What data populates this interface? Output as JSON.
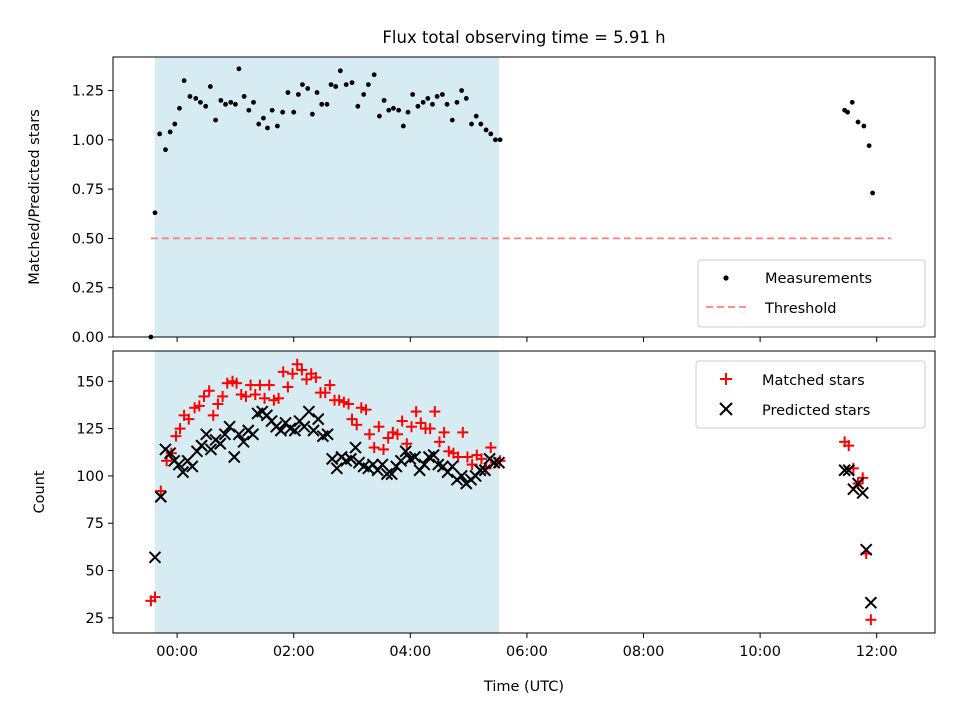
{
  "title": "Flux total observing time = 5.91 h",
  "colors": {
    "shade": "#add8e6",
    "threshold": "#ff7f7f",
    "matched": "#ff0000",
    "predicted": "#000000",
    "measurement": "#000000"
  },
  "chart_data": [
    {
      "type": "scatter",
      "ylabel": "Matched/Predicted stars",
      "ylim": [
        0,
        1.42
      ],
      "yticks": [
        0.0,
        0.25,
        0.5,
        0.75,
        1.0,
        1.25
      ],
      "yticklabels": [
        "0.00",
        "0.25",
        "0.50",
        "0.75",
        "1.00",
        "1.25"
      ],
      "xlim": [
        -1.1,
        13.0
      ],
      "xtick_values": [
        0,
        2,
        4,
        6,
        8,
        10,
        12
      ],
      "shaded_span": [
        -0.38,
        5.52
      ],
      "threshold": {
        "value": 0.5,
        "x": [
          -0.45,
          12.25
        ]
      },
      "legend": {
        "position": "lower right",
        "entries": [
          "Measurements",
          "Threshold"
        ]
      },
      "series": [
        {
          "name": "Measurements",
          "marker": "dot",
          "points": [
            [
              -0.45,
              0.0
            ],
            [
              -0.38,
              0.63
            ],
            [
              -0.3,
              1.03
            ],
            [
              -0.2,
              0.95
            ],
            [
              -0.12,
              1.04
            ],
            [
              -0.04,
              1.08
            ],
            [
              0.04,
              1.16
            ],
            [
              0.12,
              1.3
            ],
            [
              0.22,
              1.22
            ],
            [
              0.32,
              1.21
            ],
            [
              0.4,
              1.19
            ],
            [
              0.49,
              1.17
            ],
            [
              0.57,
              1.27
            ],
            [
              0.66,
              1.1
            ],
            [
              0.75,
              1.2
            ],
            [
              0.83,
              1.18
            ],
            [
              0.92,
              1.19
            ],
            [
              1.0,
              1.18
            ],
            [
              1.06,
              1.36
            ],
            [
              1.15,
              1.22
            ],
            [
              1.23,
              1.15
            ],
            [
              1.31,
              1.19
            ],
            [
              1.4,
              1.08
            ],
            [
              1.48,
              1.11
            ],
            [
              1.55,
              1.06
            ],
            [
              1.63,
              1.15
            ],
            [
              1.72,
              1.07
            ],
            [
              1.81,
              1.14
            ],
            [
              1.9,
              1.24
            ],
            [
              2.0,
              1.14
            ],
            [
              2.08,
              1.23
            ],
            [
              2.15,
              1.28
            ],
            [
              2.24,
              1.26
            ],
            [
              2.32,
              1.13
            ],
            [
              2.4,
              1.24
            ],
            [
              2.48,
              1.18
            ],
            [
              2.57,
              1.18
            ],
            [
              2.64,
              1.28
            ],
            [
              2.72,
              1.27
            ],
            [
              2.8,
              1.35
            ],
            [
              2.9,
              1.28
            ],
            [
              3.0,
              1.29
            ],
            [
              3.1,
              1.17
            ],
            [
              3.2,
              1.23
            ],
            [
              3.28,
              1.28
            ],
            [
              3.38,
              1.33
            ],
            [
              3.47,
              1.12
            ],
            [
              3.55,
              1.2
            ],
            [
              3.63,
              1.15
            ],
            [
              3.71,
              1.16
            ],
            [
              3.8,
              1.15
            ],
            [
              3.88,
              1.07
            ],
            [
              3.96,
              1.14
            ],
            [
              4.04,
              1.23
            ],
            [
              4.13,
              1.17
            ],
            [
              4.22,
              1.19
            ],
            [
              4.3,
              1.21
            ],
            [
              4.38,
              1.18
            ],
            [
              4.46,
              1.22
            ],
            [
              4.55,
              1.23
            ],
            [
              4.63,
              1.18
            ],
            [
              4.72,
              1.1
            ],
            [
              4.8,
              1.19
            ],
            [
              4.88,
              1.25
            ],
            [
              4.96,
              1.21
            ],
            [
              5.05,
              1.08
            ],
            [
              5.13,
              1.12
            ],
            [
              5.21,
              1.08
            ],
            [
              5.3,
              1.05
            ],
            [
              5.38,
              1.03
            ],
            [
              5.46,
              1.0
            ],
            [
              5.54,
              1.0
            ],
            [
              11.45,
              1.15
            ],
            [
              11.5,
              1.14
            ],
            [
              11.58,
              1.19
            ],
            [
              11.68,
              1.09
            ],
            [
              11.78,
              1.07
            ],
            [
              11.87,
              0.97
            ],
            [
              11.93,
              0.73
            ]
          ]
        }
      ]
    },
    {
      "type": "scatter",
      "ylabel": "Count",
      "xlabel": "Time (UTC)",
      "ylim": [
        17,
        166
      ],
      "yticks": [
        25,
        50,
        75,
        100,
        125,
        150
      ],
      "yticklabels": [
        "25",
        "50",
        "75",
        "100",
        "125",
        "150"
      ],
      "xlim": [
        -1.1,
        13.0
      ],
      "xticks": [
        0,
        2,
        4,
        6,
        8,
        10,
        12
      ],
      "xticklabels": [
        "00:00",
        "02:00",
        "04:00",
        "06:00",
        "08:00",
        "10:00",
        "12:00"
      ],
      "shaded_span": [
        -0.38,
        5.52
      ],
      "legend": {
        "position": "upper right",
        "entries": [
          "Matched stars",
          "Predicted stars"
        ]
      },
      "series": [
        {
          "name": "Matched stars",
          "marker": "plus",
          "points": [
            [
              -0.45,
              34
            ],
            [
              -0.38,
              36
            ],
            [
              -0.28,
              92
            ],
            [
              -0.18,
              108
            ],
            [
              -0.1,
              112
            ],
            [
              -0.02,
              121
            ],
            [
              0.05,
              125
            ],
            [
              0.12,
              132
            ],
            [
              0.2,
              130
            ],
            [
              0.3,
              136
            ],
            [
              0.38,
              137
            ],
            [
              0.46,
              142
            ],
            [
              0.55,
              145
            ],
            [
              0.62,
              132
            ],
            [
              0.7,
              138
            ],
            [
              0.78,
              142
            ],
            [
              0.86,
              149
            ],
            [
              0.95,
              150
            ],
            [
              1.02,
              149
            ],
            [
              1.1,
              143
            ],
            [
              1.18,
              142
            ],
            [
              1.26,
              148
            ],
            [
              1.34,
              143
            ],
            [
              1.42,
              148
            ],
            [
              1.5,
              141
            ],
            [
              1.58,
              148
            ],
            [
              1.66,
              140
            ],
            [
              1.74,
              141
            ],
            [
              1.82,
              155
            ],
            [
              1.9,
              147
            ],
            [
              1.98,
              154
            ],
            [
              2.06,
              159
            ],
            [
              2.14,
              156
            ],
            [
              2.22,
              151
            ],
            [
              2.3,
              154
            ],
            [
              2.38,
              152
            ],
            [
              2.46,
              144
            ],
            [
              2.54,
              144
            ],
            [
              2.62,
              148
            ],
            [
              2.7,
              140
            ],
            [
              2.78,
              140
            ],
            [
              2.86,
              139
            ],
            [
              2.94,
              138
            ],
            [
              3.0,
              130
            ],
            [
              3.08,
              127
            ],
            [
              3.16,
              136
            ],
            [
              3.24,
              135
            ],
            [
              3.3,
              122
            ],
            [
              3.38,
              115
            ],
            [
              3.46,
              126
            ],
            [
              3.54,
              114
            ],
            [
              3.62,
              120
            ],
            [
              3.7,
              123
            ],
            [
              3.78,
              122
            ],
            [
              3.86,
              129
            ],
            [
              3.94,
              117
            ],
            [
              4.02,
              126
            ],
            [
              4.1,
              134
            ],
            [
              4.18,
              128
            ],
            [
              4.26,
              125
            ],
            [
              4.34,
              125
            ],
            [
              4.42,
              134
            ],
            [
              4.5,
              118
            ],
            [
              4.58,
              123
            ],
            [
              4.66,
              113
            ],
            [
              4.74,
              112
            ],
            [
              4.82,
              110
            ],
            [
              4.9,
              123
            ],
            [
              4.98,
              110
            ],
            [
              5.06,
              106
            ],
            [
              5.14,
              111
            ],
            [
              5.22,
              109
            ],
            [
              5.3,
              104
            ],
            [
              5.38,
              115
            ],
            [
              5.46,
              107
            ],
            [
              5.54,
              108
            ],
            [
              11.45,
              118
            ],
            [
              11.52,
              116
            ],
            [
              11.6,
              104
            ],
            [
              11.68,
              96
            ],
            [
              11.76,
              99
            ],
            [
              11.82,
              59
            ],
            [
              11.9,
              24
            ]
          ]
        },
        {
          "name": "Predicted stars",
          "marker": "x",
          "points": [
            [
              -0.38,
              57
            ],
            [
              -0.28,
              89
            ],
            [
              -0.2,
              114
            ],
            [
              -0.12,
              112
            ],
            [
              -0.05,
              108
            ],
            [
              0.03,
              106
            ],
            [
              0.1,
              102
            ],
            [
              0.18,
              108
            ],
            [
              0.26,
              105
            ],
            [
              0.34,
              113
            ],
            [
              0.42,
              116
            ],
            [
              0.5,
              122
            ],
            [
              0.58,
              114
            ],
            [
              0.66,
              119
            ],
            [
              0.74,
              117
            ],
            [
              0.82,
              122
            ],
            [
              0.9,
              126
            ],
            [
              0.98,
              110
            ],
            [
              1.06,
              122
            ],
            [
              1.14,
              118
            ],
            [
              1.22,
              124
            ],
            [
              1.3,
              122
            ],
            [
              1.38,
              133
            ],
            [
              1.46,
              134
            ],
            [
              1.54,
              132
            ],
            [
              1.62,
              129
            ],
            [
              1.7,
              126
            ],
            [
              1.78,
              124
            ],
            [
              1.86,
              128
            ],
            [
              1.94,
              125
            ],
            [
              2.02,
              124
            ],
            [
              2.1,
              129
            ],
            [
              2.18,
              126
            ],
            [
              2.26,
              134
            ],
            [
              2.34,
              124
            ],
            [
              2.42,
              130
            ],
            [
              2.5,
              121
            ],
            [
              2.58,
              122
            ],
            [
              2.66,
              109
            ],
            [
              2.74,
              104
            ],
            [
              2.82,
              110
            ],
            [
              2.9,
              108
            ],
            [
              2.98,
              109
            ],
            [
              3.06,
              115
            ],
            [
              3.12,
              107
            ],
            [
              3.2,
              105
            ],
            [
              3.28,
              104
            ],
            [
              3.36,
              106
            ],
            [
              3.44,
              103
            ],
            [
              3.52,
              106
            ],
            [
              3.6,
              101
            ],
            [
              3.68,
              101
            ],
            [
              3.76,
              105
            ],
            [
              3.84,
              108
            ],
            [
              3.92,
              113
            ],
            [
              4.0,
              109
            ],
            [
              4.08,
              110
            ],
            [
              4.16,
              103
            ],
            [
              4.24,
              106
            ],
            [
              4.32,
              110
            ],
            [
              4.4,
              111
            ],
            [
              4.48,
              106
            ],
            [
              4.56,
              105
            ],
            [
              4.64,
              102
            ],
            [
              4.72,
              105
            ],
            [
              4.8,
              98
            ],
            [
              4.88,
              100
            ],
            [
              4.96,
              96
            ],
            [
              5.04,
              98
            ],
            [
              5.12,
              100
            ],
            [
              5.2,
              103
            ],
            [
              5.28,
              103
            ],
            [
              5.36,
              109
            ],
            [
              5.44,
              107
            ],
            [
              5.52,
              107
            ],
            [
              11.45,
              103
            ],
            [
              11.52,
              103
            ],
            [
              11.6,
              93
            ],
            [
              11.68,
              96
            ],
            [
              11.76,
              91
            ],
            [
              11.82,
              61
            ],
            [
              11.9,
              33
            ]
          ]
        }
      ]
    }
  ]
}
